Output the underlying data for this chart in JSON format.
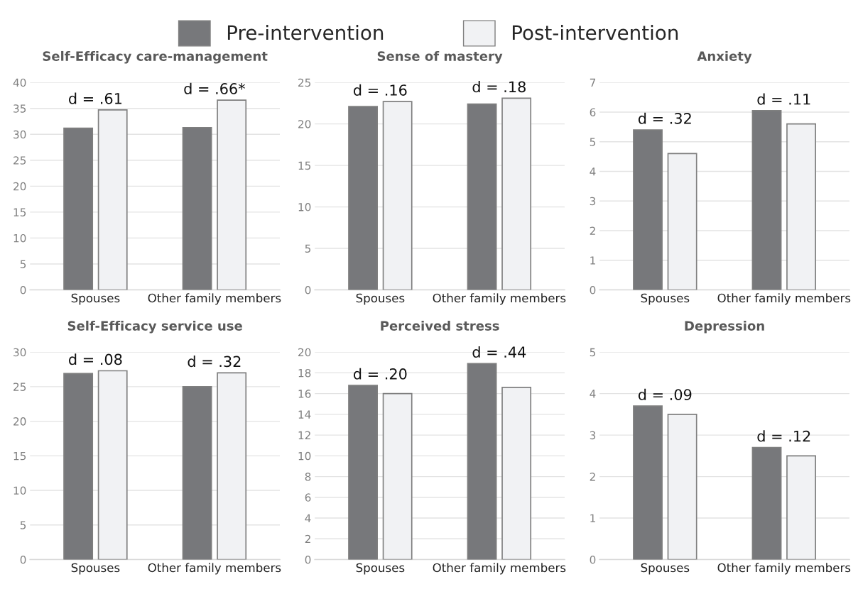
{
  "chart_data": [
    {
      "type": "bar",
      "title": "Self-Efficacy care-management",
      "categories": [
        "Spouses",
        "Other family members"
      ],
      "series": [
        {
          "name": "Pre-intervention",
          "color": "#77787b",
          "values": [
            31.2,
            31.3
          ]
        },
        {
          "name": "Post-intervention",
          "color": "#f1f2f4",
          "values": [
            34.7,
            36.6
          ]
        }
      ],
      "ylim": [
        0,
        40
      ],
      "yticks": [
        0,
        5,
        10,
        15,
        20,
        25,
        30,
        35,
        40
      ],
      "grid": "y",
      "legend": "top",
      "annotations": [
        {
          "text": "d = .61",
          "x": "Spouses",
          "y": 34.7
        },
        {
          "text": "d = .66*",
          "x": "Other family members",
          "y": 36.6
        }
      ]
    },
    {
      "type": "bar",
      "title": "Sense of mastery",
      "categories": [
        "Spouses",
        "Other family members"
      ],
      "series": [
        {
          "color": "#77787b",
          "values": [
            22.1,
            22.4
          ]
        },
        {
          "color": "#f1f2f4",
          "values": [
            22.7,
            23.1
          ]
        }
      ],
      "ylim": [
        0,
        25
      ],
      "yticks": [
        0,
        5,
        10,
        15,
        20,
        25
      ],
      "grid": "y",
      "annotations": [
        {
          "text": "d = .16",
          "x": "Spouses",
          "y": 22.7
        },
        {
          "text": "d = .18",
          "x": "Other family members",
          "y": 23.1
        }
      ]
    },
    {
      "type": "bar",
      "title": "Anxiety",
      "categories": [
        "Spouses",
        "Other family members"
      ],
      "series": [
        {
          "color": "#77787b",
          "values": [
            5.4,
            6.05
          ]
        },
        {
          "color": "#f1f2f4",
          "values": [
            4.6,
            5.6
          ]
        }
      ],
      "ylim": [
        0,
        7
      ],
      "yticks": [
        0,
        1,
        2,
        3,
        4,
        5,
        6,
        7
      ],
      "grid": "y",
      "annotations": [
        {
          "text": "d = .32",
          "x": "Spouses",
          "y": 5.4
        },
        {
          "text": "d = .11",
          "x": "Other family members",
          "y": 6.05
        }
      ]
    },
    {
      "type": "bar",
      "title": "Self-Efficacy service use",
      "categories": [
        "Spouses",
        "Other family members"
      ],
      "series": [
        {
          "color": "#77787b",
          "values": [
            26.9,
            25.0
          ]
        },
        {
          "color": "#f1f2f4",
          "values": [
            27.3,
            27.0
          ]
        }
      ],
      "ylim": [
        0,
        30
      ],
      "yticks": [
        0,
        5,
        10,
        15,
        20,
        25,
        30
      ],
      "grid": "y",
      "annotations": [
        {
          "text": "d = .08",
          "x": "Spouses",
          "y": 27.3
        },
        {
          "text": "d = .32",
          "x": "Other family members",
          "y": 27.0
        }
      ]
    },
    {
      "type": "bar",
      "title": "Perceived stress",
      "categories": [
        "Spouses",
        "Other family members"
      ],
      "series": [
        {
          "color": "#77787b",
          "values": [
            16.8,
            18.9
          ]
        },
        {
          "color": "#f1f2f4",
          "values": [
            16.0,
            16.6
          ]
        }
      ],
      "ylim": [
        0,
        20
      ],
      "yticks": [
        0,
        2,
        4,
        6,
        8,
        10,
        12,
        14,
        16,
        18,
        20
      ],
      "grid": "y",
      "annotations": [
        {
          "text": "d = .20",
          "x": "Spouses",
          "y": 16.8
        },
        {
          "text": "d = .44",
          "x": "Other family members",
          "y": 18.9
        }
      ]
    },
    {
      "type": "bar",
      "title": "Depression",
      "categories": [
        "Spouses",
        "Other family members"
      ],
      "series": [
        {
          "color": "#77787b",
          "values": [
            3.7,
            2.7
          ]
        },
        {
          "color": "#f1f2f4",
          "values": [
            3.5,
            2.5
          ]
        }
      ],
      "ylim": [
        0,
        5
      ],
      "yticks": [
        0,
        1,
        2,
        3,
        4,
        5
      ],
      "grid": "y",
      "annotations": [
        {
          "text": "d = .09",
          "x": "Spouses",
          "y": 3.7
        },
        {
          "text": "d = .12",
          "x": "Other family members",
          "y": 2.7
        }
      ]
    }
  ]
}
